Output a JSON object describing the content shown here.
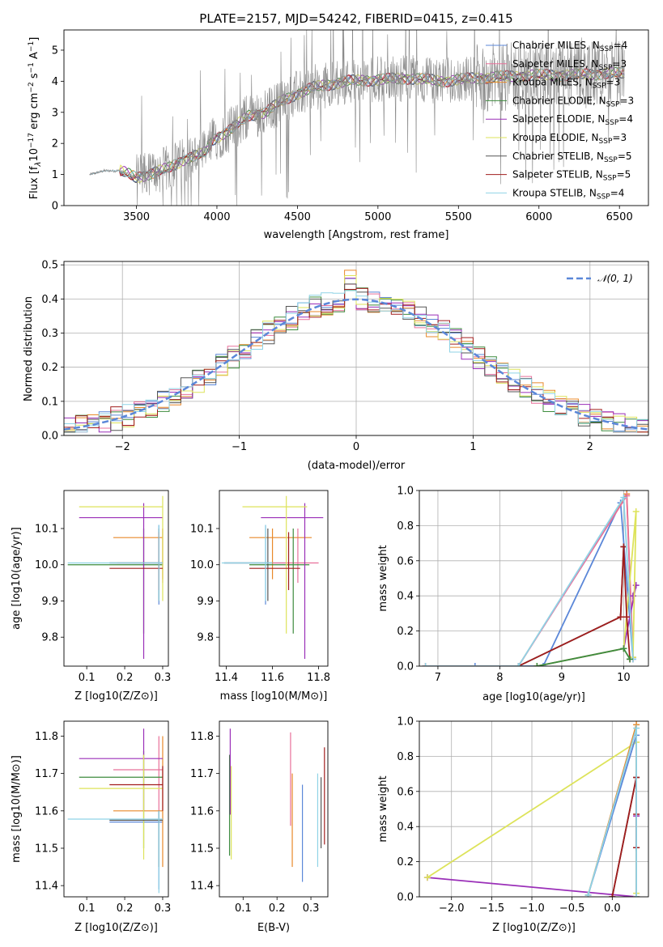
{
  "colors": {
    "Chabrier MILES": "#5b87d8",
    "Salpeter MILES": "#e8709a",
    "Kroupa MILES": "#e8892a",
    "Chabrier ELODIE": "#3e8c3e",
    "Salpeter ELODIE": "#9a2fb8",
    "Kroupa ELODIE": "#dde35a",
    "Chabrier STELIB": "#555555",
    "Salpeter STELIB": "#a11d1d",
    "Kroupa STELIB": "#8fd3e6",
    "model": "#8a8a8a",
    "gauss": "#5b87d8",
    "grid": "#b0b0b0"
  },
  "chart_data": [
    {
      "id": "spectrum",
      "type": "line",
      "title": "PLATE=2157, MJD=54242, FIBERID=0415, z=0.415",
      "xlabel": "wavelength [Angstrom, rest frame]",
      "ylabel_parts": [
        "Flux [f",
        "λ",
        "10",
        "−17",
        " erg cm",
        "−2",
        " s",
        "−1",
        " A",
        "−1",
        "]"
      ],
      "xlim": [
        3050,
        6680
      ],
      "ylim": [
        0,
        5.65
      ],
      "xticks": [
        3500,
        4000,
        4500,
        5000,
        5500,
        6000,
        6500
      ],
      "yticks": [
        0,
        1,
        2,
        3,
        4,
        5
      ],
      "grid": false,
      "legend": [
        {
          "name": "Chabrier MILES",
          "n": "4"
        },
        {
          "name": "Salpeter MILES",
          "n": "3"
        },
        {
          "name": "Kroupa MILES",
          "n": "3"
        },
        {
          "name": "Chabrier ELODIE",
          "n": "3"
        },
        {
          "name": "Salpeter ELODIE",
          "n": "4"
        },
        {
          "name": "Kroupa ELODIE",
          "n": "3"
        },
        {
          "name": "Chabrier STELIB",
          "n": "5"
        },
        {
          "name": "Salpeter STELIB",
          "n": "5"
        },
        {
          "name": "Kroupa STELIB",
          "n": "4"
        }
      ],
      "legend_text": {
        "prefix": "N",
        "sub": "SSP",
        "eq": "="
      },
      "data_x_range": [
        3210,
        6530
      ],
      "model_profile": [
        [
          3210,
          1.0
        ],
        [
          3300,
          1.12
        ],
        [
          3400,
          1.12
        ],
        [
          3500,
          0.9
        ],
        [
          3600,
          1.05
        ],
        [
          3700,
          1.2
        ],
        [
          3800,
          1.5
        ],
        [
          3930,
          1.7
        ],
        [
          3970,
          2.1
        ],
        [
          4100,
          2.5
        ],
        [
          4200,
          2.9
        ],
        [
          4300,
          3.0
        ],
        [
          4400,
          3.35
        ],
        [
          4500,
          3.6
        ],
        [
          4600,
          3.8
        ],
        [
          4700,
          3.9
        ],
        [
          4800,
          4.0
        ],
        [
          5000,
          4.05
        ],
        [
          5200,
          4.1
        ],
        [
          5400,
          4.0
        ],
        [
          5600,
          4.1
        ],
        [
          5800,
          4.15
        ],
        [
          6000,
          4.2
        ],
        [
          6200,
          4.2
        ],
        [
          6400,
          4.25
        ],
        [
          6530,
          4.25
        ]
      ]
    },
    {
      "id": "residuals",
      "type": "line",
      "xlabel": "(data-model)/error",
      "ylabel": "Normed distribution",
      "xlim": [
        -2.5,
        2.5
      ],
      "ylim": [
        0,
        0.51
      ],
      "xticks": [
        -2,
        -1,
        0,
        1,
        2
      ],
      "xtick_labels": [
        "−2",
        "−1",
        "0",
        "1",
        "2"
      ],
      "yticks": [
        0,
        0.1,
        0.2,
        0.3,
        0.4,
        0.5
      ],
      "grid": true,
      "gauss_label": "𝒩(0, 1)",
      "bin_width": 0.1
    },
    {
      "id": "age_vs_Z",
      "type": "scatter",
      "xlabel": "Z [log10(Z/Z⊙)]",
      "ylabel": "age  [log10(age/yr)]",
      "xlim": [
        0.04,
        0.315
      ],
      "ylim": [
        9.72,
        10.205
      ],
      "xticks": [
        0.1,
        0.2,
        0.3
      ],
      "yticks": [
        9.8,
        9.9,
        10.0,
        10.1
      ],
      "points": [
        {
          "s": "Chabrier MILES",
          "x": 0.29,
          "y": 10.005,
          "xe": [
            0.16,
            0.3
          ],
          "ye": [
            9.89,
            10.11
          ]
        },
        {
          "s": "Salpeter MILES",
          "x": 0.3,
          "y": 10.005,
          "xe": [
            0.18,
            0.3
          ],
          "ye": [
            9.95,
            10.1
          ]
        },
        {
          "s": "Kroupa MILES",
          "x": 0.3,
          "y": 10.075,
          "xe": [
            0.17,
            0.3
          ],
          "ye": [
            9.96,
            10.1
          ]
        },
        {
          "s": "Chabrier ELODIE",
          "x": 0.25,
          "y": 10.0,
          "xe": [
            0.05,
            0.3
          ],
          "ye": [
            9.81,
            10.1
          ]
        },
        {
          "s": "Salpeter ELODIE",
          "x": 0.25,
          "y": 10.13,
          "xe": [
            0.08,
            0.3
          ],
          "ye": [
            9.74,
            10.17
          ]
        },
        {
          "s": "Kroupa ELODIE",
          "x": 0.3,
          "y": 10.16,
          "xe": [
            0.08,
            0.3
          ],
          "ye": [
            9.9,
            10.19
          ]
        },
        {
          "s": "Chabrier STELIB",
          "x": 0.29,
          "y": 10.005,
          "xe": [
            0.16,
            0.3
          ],
          "ye": [
            9.9,
            10.1
          ]
        },
        {
          "s": "Salpeter STELIB",
          "x": 0.29,
          "y": 9.99,
          "xe": [
            0.16,
            0.3
          ],
          "ye": [
            9.93,
            10.09
          ]
        },
        {
          "s": "Kroupa STELIB",
          "x": 0.29,
          "y": 10.005,
          "xe": [
            0.05,
            0.3
          ],
          "ye": [
            9.9,
            10.11
          ]
        }
      ]
    },
    {
      "id": "age_vs_mass",
      "type": "scatter",
      "xlabel": "mass [log10(M/M⊙)]",
      "xlim": [
        11.37,
        11.84
      ],
      "ylim": [
        9.72,
        10.205
      ],
      "xticks": [
        11.4,
        11.6,
        11.8
      ],
      "yticks": [
        9.8,
        9.9,
        10.0,
        10.1
      ],
      "points": [
        {
          "s": "Chabrier MILES",
          "x": 11.57,
          "y": 10.005,
          "xe": [
            11.39,
            11.66
          ],
          "ye": [
            9.89,
            10.11
          ]
        },
        {
          "s": "Salpeter MILES",
          "x": 11.71,
          "y": 10.005,
          "xe": [
            11.6,
            11.8
          ],
          "ye": [
            9.95,
            10.1
          ]
        },
        {
          "s": "Kroupa MILES",
          "x": 11.6,
          "y": 10.075,
          "xe": [
            11.5,
            11.77
          ],
          "ye": [
            9.96,
            10.1
          ]
        },
        {
          "s": "Chabrier ELODIE",
          "x": 11.69,
          "y": 10.0,
          "xe": [
            11.5,
            11.76
          ],
          "ye": [
            9.81,
            10.1
          ]
        },
        {
          "s": "Salpeter ELODIE",
          "x": 11.74,
          "y": 10.13,
          "xe": [
            11.55,
            11.82
          ],
          "ye": [
            9.74,
            10.17
          ]
        },
        {
          "s": "Kroupa ELODIE",
          "x": 11.66,
          "y": 10.16,
          "xe": [
            11.47,
            11.75
          ],
          "ye": [
            9.81,
            10.19
          ]
        },
        {
          "s": "Chabrier STELIB",
          "x": 11.58,
          "y": 10.005,
          "xe": [
            11.39,
            11.6
          ],
          "ye": [
            9.9,
            10.1
          ]
        },
        {
          "s": "Salpeter STELIB",
          "x": 11.67,
          "y": 9.99,
          "xe": [
            11.5,
            11.72
          ],
          "ye": [
            9.93,
            10.09
          ]
        },
        {
          "s": "Kroupa STELIB",
          "x": 11.57,
          "y": 10.005,
          "xe": [
            11.38,
            11.6
          ],
          "ye": [
            9.9,
            10.11
          ]
        }
      ]
    },
    {
      "id": "weight_vs_age",
      "type": "line",
      "xlabel": "age  [log10(age/yr)]",
      "ylabel": "mass weight",
      "xlim": [
        6.7,
        10.4
      ],
      "ylim": [
        0,
        1.0
      ],
      "xticks": [
        7,
        8,
        9,
        10
      ],
      "yticks": [
        0,
        0.2,
        0.4,
        0.6,
        0.8,
        1.0
      ],
      "grid": true,
      "series": [
        {
          "s": "Chabrier MILES",
          "pts": [
            [
              6.8,
              0.0
            ],
            [
              7.6,
              0.0
            ],
            [
              8.7,
              0.0
            ],
            [
              9.95,
              0.93
            ],
            [
              10.15,
              0.04
            ]
          ]
        },
        {
          "s": "Kroupa MILES",
          "pts": [
            [
              6.8,
              0.0
            ],
            [
              8.3,
              0.0
            ],
            [
              10.05,
              0.98
            ],
            [
              10.15,
              0.05
            ]
          ]
        },
        {
          "s": "Salpeter MILES",
          "pts": [
            [
              6.8,
              0.0
            ],
            [
              8.3,
              0.0
            ],
            [
              10.05,
              0.97
            ],
            [
              10.15,
              0.04
            ]
          ]
        },
        {
          "s": "Salpeter ELODIE",
          "pts": [
            [
              8.6,
              0.0
            ],
            [
              10.0,
              0.1
            ],
            [
              10.2,
              0.46
            ],
            [
              10.15,
              0.4
            ]
          ]
        },
        {
          "s": "Kroupa ELODIE",
          "pts": [
            [
              8.6,
              0.0
            ],
            [
              10.0,
              0.1
            ],
            [
              10.2,
              0.88
            ],
            [
              10.15,
              0.05
            ]
          ]
        },
        {
          "s": "Chabrier STELIB",
          "pts": [
            [
              8.3,
              0.0
            ],
            [
              9.95,
              0.28
            ],
            [
              10.0,
              0.68
            ]
          ]
        },
        {
          "s": "Salpeter STELIB",
          "pts": [
            [
              8.3,
              0.0
            ],
            [
              9.95,
              0.28
            ],
            [
              10.0,
              0.68
            ],
            [
              10.05,
              0.28
            ],
            [
              10.1,
              0.04
            ]
          ]
        },
        {
          "s": "Kroupa STELIB",
          "pts": [
            [
              6.8,
              0.0
            ],
            [
              8.3,
              0.0
            ],
            [
              10.0,
              0.96
            ],
            [
              10.15,
              0.04
            ]
          ]
        },
        {
          "s": "Chabrier ELODIE",
          "pts": [
            [
              8.6,
              0.0
            ],
            [
              10.0,
              0.1
            ],
            [
              10.1,
              0.04
            ]
          ]
        }
      ]
    },
    {
      "id": "mass_vs_Z",
      "type": "scatter",
      "xlabel": "Z [log10(Z/Z⊙)]",
      "ylabel": "mass [log10(M/M⊙)]",
      "xlim": [
        0.04,
        0.315
      ],
      "ylim": [
        11.37,
        11.84
      ],
      "xticks": [
        0.1,
        0.2,
        0.3
      ],
      "yticks": [
        11.4,
        11.5,
        11.6,
        11.7,
        11.8
      ],
      "points": [
        {
          "s": "Chabrier MILES",
          "x": 0.29,
          "y": 11.57,
          "xe": [
            0.16,
            0.3
          ],
          "ye": [
            11.39,
            11.6
          ]
        },
        {
          "s": "Salpeter MILES",
          "x": 0.29,
          "y": 11.71,
          "xe": [
            0.17,
            0.3
          ],
          "ye": [
            11.6,
            11.8
          ]
        },
        {
          "s": "Kroupa MILES",
          "x": 0.3,
          "y": 11.6,
          "xe": [
            0.17,
            0.3
          ],
          "ye": [
            11.45,
            11.8
          ]
        },
        {
          "s": "Chabrier ELODIE",
          "x": 0.25,
          "y": 11.69,
          "xe": [
            0.08,
            0.3
          ],
          "ye": [
            11.5,
            11.76
          ]
        },
        {
          "s": "Salpeter ELODIE",
          "x": 0.25,
          "y": 11.74,
          "xe": [
            0.08,
            0.3
          ],
          "ye": [
            11.6,
            11.82
          ]
        },
        {
          "s": "Kroupa ELODIE",
          "x": 0.25,
          "y": 11.66,
          "xe": [
            0.08,
            0.3
          ],
          "ye": [
            11.47,
            11.75
          ]
        },
        {
          "s": "Chabrier STELIB",
          "x": 0.29,
          "y": 11.575,
          "xe": [
            0.16,
            0.3
          ],
          "ye": [
            11.45,
            11.6
          ]
        },
        {
          "s": "Salpeter STELIB",
          "x": 0.3,
          "y": 11.67,
          "xe": [
            0.16,
            0.3
          ],
          "ye": [
            11.6,
            11.72
          ]
        },
        {
          "s": "Kroupa STELIB",
          "x": 0.29,
          "y": 11.578,
          "xe": [
            0.05,
            0.3
          ],
          "ye": [
            11.38,
            11.6
          ]
        }
      ]
    },
    {
      "id": "mass_vs_EBV",
      "type": "scatter",
      "xlabel": "E(B-V)",
      "xlim": [
        0.03,
        0.35
      ],
      "ylim": [
        11.37,
        11.84
      ],
      "xticks": [
        0.1,
        0.2,
        0.3
      ],
      "yticks": [
        11.4,
        11.5,
        11.6,
        11.7,
        11.8
      ],
      "points": [
        {
          "s": "Chabrier MILES",
          "x": 0.275,
          "ye": [
            11.41,
            11.67
          ]
        },
        {
          "s": "Salpeter MILES",
          "x": 0.24,
          "ye": [
            11.56,
            11.81
          ]
        },
        {
          "s": "Kroupa MILES",
          "x": 0.245,
          "ye": [
            11.45,
            11.7
          ]
        },
        {
          "s": "Chabrier ELODIE",
          "x": 0.06,
          "ye": [
            11.48,
            11.75
          ]
        },
        {
          "s": "Salpeter ELODIE",
          "x": 0.062,
          "ye": [
            11.59,
            11.82
          ]
        },
        {
          "s": "Kroupa ELODIE",
          "x": 0.065,
          "ye": [
            11.47,
            11.72
          ]
        },
        {
          "s": "Chabrier STELIB",
          "x": 0.33,
          "ye": [
            11.5,
            11.69
          ]
        },
        {
          "s": "Salpeter STELIB",
          "x": 0.34,
          "ye": [
            11.51,
            11.77
          ]
        },
        {
          "s": "Kroupa STELIB",
          "x": 0.32,
          "ye": [
            11.45,
            11.7
          ]
        }
      ]
    },
    {
      "id": "weight_vs_Z",
      "type": "line",
      "xlabel": "Z [log10(Z/Z⊙)]",
      "ylabel": "mass weight",
      "xlim": [
        -2.4,
        0.45
      ],
      "ylim": [
        0,
        1.0
      ],
      "xticks": [
        -2.0,
        -1.5,
        -1.0,
        -0.5,
        0.0
      ],
      "xtick_labels": [
        "−2.0",
        "−1.5",
        "−1.0",
        "−0.5",
        "0.0"
      ],
      "yticks": [
        0,
        0.2,
        0.4,
        0.6,
        0.8,
        1.0
      ],
      "grid": true,
      "series": [
        {
          "s": "Salpeter ELODIE",
          "pts": [
            [
              -2.3,
              0.11
            ],
            [
              0.3,
              0.0
            ],
            [
              0.3,
              0.46
            ]
          ]
        },
        {
          "s": "Kroupa ELODIE",
          "pts": [
            [
              -2.3,
              0.11
            ],
            [
              0.3,
              0.88
            ],
            [
              0.3,
              0.02
            ]
          ]
        },
        {
          "s": "Chabrier MILES",
          "pts": [
            [
              -0.3,
              0.01
            ],
            [
              0.3,
              0.92
            ],
            [
              0.3,
              0.0
            ]
          ]
        },
        {
          "s": "Kroupa MILES",
          "pts": [
            [
              -0.3,
              0.01
            ],
            [
              0.3,
              0.98
            ],
            [
              0.3,
              0.0
            ]
          ]
        },
        {
          "s": "Chabrier STELIB",
          "pts": [
            [
              0.0,
              0.0
            ],
            [
              0.3,
              0.68
            ],
            [
              0.3,
              0.28
            ]
          ]
        },
        {
          "s": "Salpeter STELIB",
          "pts": [
            [
              0.0,
              0.0
            ],
            [
              0.3,
              0.68
            ],
            [
              0.3,
              0.47
            ],
            [
              0.3,
              0.28
            ]
          ]
        },
        {
          "s": "Kroupa STELIB",
          "pts": [
            [
              -0.3,
              0.01
            ],
            [
              0.3,
              0.96
            ],
            [
              0.3,
              0.0
            ]
          ]
        }
      ]
    }
  ]
}
